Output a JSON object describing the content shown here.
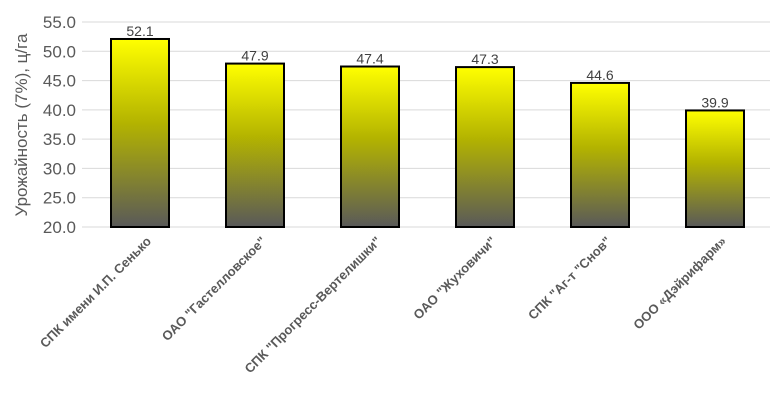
{
  "chart_data": {
    "type": "bar",
    "title": "",
    "xlabel": "",
    "ylabel": "Урожайность (7%), ц/га",
    "ylim": [
      20,
      55
    ],
    "yticks": [
      "20.0",
      "25.0",
      "30.0",
      "35.0",
      "40.0",
      "45.0",
      "50.0",
      "55.0"
    ],
    "categories": [
      "СПК имени И.П. Сенько",
      "ОАО \"Гастелловское\"",
      "СПК \"Прогресс-Вертелишки\"",
      "ОАО \"Жуховичи\"",
      "СПК \"Аг-т \"Снов\"",
      "ООО «Дэйрифарм»"
    ],
    "values": [
      52.1,
      47.9,
      47.4,
      47.3,
      44.6,
      39.9
    ],
    "data_labels": [
      "52.1",
      "47.9",
      "47.4",
      "47.3",
      "44.6",
      "39.9"
    ],
    "grid": true,
    "legend": "none",
    "colors": {
      "bar_top": "#ffff00",
      "bar_mid": "#b3b300",
      "bar_bottom": "#595959",
      "bar_border": "#000000",
      "grid": "#d9d9d9"
    }
  }
}
